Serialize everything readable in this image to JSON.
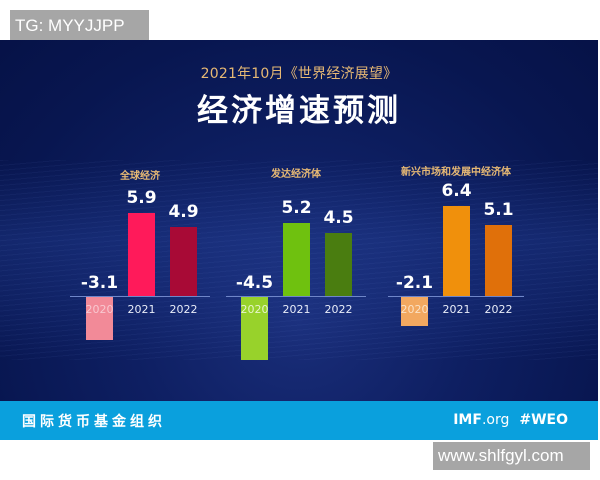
{
  "watermarks": {
    "top_left": "TG: MYYJJPP",
    "bottom_right": "www.shlfgyl.com"
  },
  "header": {
    "subtitle": "2021年10月《世界经济展望》",
    "title": "经济增速预测"
  },
  "footer": {
    "org_name": "国际货币基金组织",
    "imf": "IMF",
    "org_suffix": ".org",
    "hashtag": "#WEO"
  },
  "colors": {
    "background": "#0b1a58",
    "title_gold": "#e7b974",
    "footer_blue": "#0aa0dd",
    "global": [
      "#f28a98",
      "#ff1a5a",
      "#a80a36"
    ],
    "advanced": [
      "#98d22b",
      "#6fc10f",
      "#4a7d10"
    ],
    "emerging": [
      "#f2a860",
      "#f0900c",
      "#e0700a"
    ]
  },
  "chart_data": {
    "type": "bar",
    "title": "经济增速预测",
    "subtitle": "2021年10月《世界经济展望》",
    "categories": [
      "2020",
      "2021",
      "2022"
    ],
    "ylabel": "",
    "xlabel": "",
    "grid": false,
    "legend": "none",
    "series": [
      {
        "name": "全球经济",
        "values": [
          -3.1,
          5.9,
          4.9
        ],
        "labels": [
          "-3.1",
          "5.9",
          "4.9"
        ]
      },
      {
        "name": "发达经济体",
        "values": [
          -4.5,
          5.2,
          4.5
        ],
        "labels": [
          "-4.5",
          "5.2",
          "4.5"
        ]
      },
      {
        "name": "新兴市场和发展中经济体",
        "values": [
          -2.1,
          6.4,
          5.1
        ],
        "labels": [
          "-2.1",
          "6.4",
          "5.1"
        ]
      }
    ]
  }
}
